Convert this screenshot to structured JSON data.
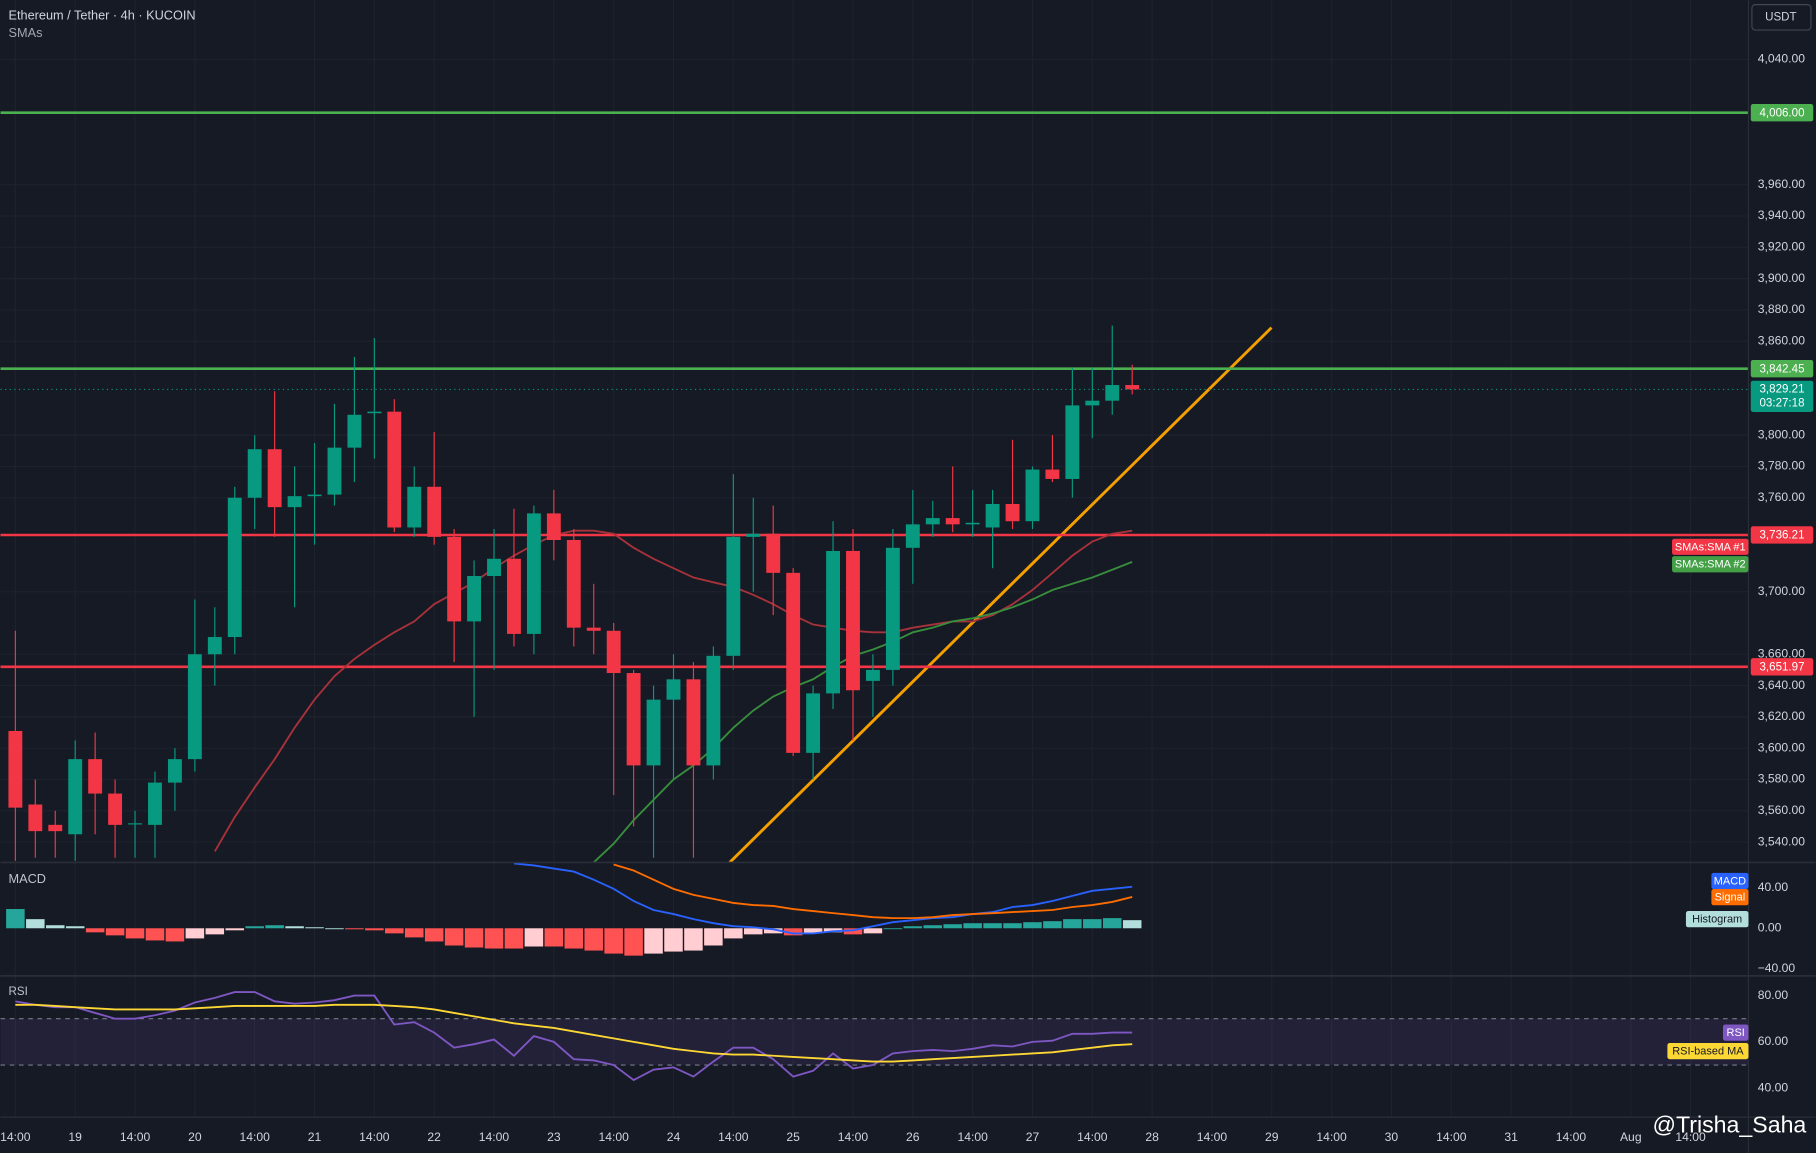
{
  "chart_data": [
    {
      "type": "candlestick",
      "title": "Ethereum / Tether · 4h · KUCOIN",
      "subtitle": "SMAs",
      "y_axis_label": "USDT",
      "annotation": "@Trisha_Saha",
      "xlim": [
        -0.75,
        86.9
      ],
      "xticks": [
        {
          "value": 0,
          "label": "14:00"
        },
        {
          "value": 3,
          "label": "19"
        },
        {
          "value": 6,
          "label": "14:00"
        },
        {
          "value": 9,
          "label": "20"
        },
        {
          "value": 12,
          "label": "14:00"
        },
        {
          "value": 15,
          "label": "21"
        },
        {
          "value": 18,
          "label": "14:00"
        },
        {
          "value": 21,
          "label": "22"
        },
        {
          "value": 24,
          "label": "14:00"
        },
        {
          "value": 27,
          "label": "23"
        },
        {
          "value": 30,
          "label": "14:00"
        },
        {
          "value": 33,
          "label": "24"
        },
        {
          "value": 36,
          "label": "14:00"
        },
        {
          "value": 39,
          "label": "25"
        },
        {
          "value": 42,
          "label": "14:00"
        },
        {
          "value": 45,
          "label": "26"
        },
        {
          "value": 48,
          "label": "14:00"
        },
        {
          "value": 51,
          "label": "27"
        },
        {
          "value": 54,
          "label": "14:00"
        },
        {
          "value": 57,
          "label": "28"
        },
        {
          "value": 60,
          "label": "14:00"
        },
        {
          "value": 63,
          "label": "29"
        },
        {
          "value": 66,
          "label": "14:00"
        },
        {
          "value": 69,
          "label": "30"
        },
        {
          "value": 72,
          "label": "14:00"
        },
        {
          "value": 75,
          "label": "31"
        },
        {
          "value": 78,
          "label": "14:00"
        },
        {
          "value": 81,
          "label": "Aug"
        },
        {
          "value": 84,
          "label": "14:00"
        }
      ],
      "ylim": [
        3527,
        4078
      ],
      "yticks": [
        {
          "value": 3540,
          "label": "3,540.00"
        },
        {
          "value": 3560,
          "label": "3,560.00"
        },
        {
          "value": 3580,
          "label": "3,580.00"
        },
        {
          "value": 3600,
          "label": "3,600.00"
        },
        {
          "value": 3620,
          "label": "3,620.00"
        },
        {
          "value": 3640,
          "label": "3,640.00"
        },
        {
          "value": 3660,
          "label": "3,660.00"
        },
        {
          "value": 3700,
          "label": "3,700.00"
        },
        {
          "value": 3760,
          "label": "3,760.00"
        },
        {
          "value": 3780,
          "label": "3,780.00"
        },
        {
          "value": 3800,
          "label": "3,800.00"
        },
        {
          "value": 3860,
          "label": "3,860.00"
        },
        {
          "value": 3880,
          "label": "3,880.00"
        },
        {
          "value": 3900,
          "label": "3,900.00"
        },
        {
          "value": 3920,
          "label": "3,920.00"
        },
        {
          "value": 3940,
          "label": "3,940.00"
        },
        {
          "value": 3960,
          "label": "3,960.00"
        },
        {
          "value": 4040,
          "label": "4,040.00"
        }
      ],
      "grid": true,
      "up_color": "#089981",
      "down_color": "#f23645",
      "open": [
        3611,
        3564,
        3551,
        3545,
        3593,
        3571,
        3552,
        3551,
        3578,
        3593,
        3660,
        3671,
        3760,
        3791,
        3754,
        3761,
        3762,
        3792,
        3814,
        3815,
        3741,
        3767,
        3735,
        3681,
        3710,
        3721,
        3673,
        3750,
        3733,
        3677,
        3675,
        3648,
        3589,
        3631,
        3644,
        3589,
        3659,
        3735,
        3737,
        3712,
        3597,
        3635,
        3726,
        3643,
        3650,
        3728,
        3743,
        3747,
        3743,
        3741,
        3756,
        3745,
        3778,
        3772,
        3819,
        3822,
        3832
      ],
      "high": [
        3675,
        3580,
        3560,
        3605,
        3610,
        3580,
        3560,
        3585,
        3600,
        3695,
        3690,
        3767,
        3800,
        3828,
        3780,
        3795,
        3820,
        3850,
        3862,
        3823,
        3780,
        3802,
        3740,
        3720,
        3740,
        3753,
        3755,
        3765,
        3740,
        3705,
        3680,
        3650,
        3640,
        3660,
        3655,
        3665,
        3775,
        3760,
        3755,
        3715,
        3640,
        3745,
        3740,
        3660,
        3740,
        3765,
        3758,
        3780,
        3765,
        3765,
        3797,
        3780,
        3800,
        3843,
        3843,
        3870,
        3845
      ],
      "low": [
        3528,
        3530,
        3530,
        3528,
        3545,
        3530,
        3530,
        3530,
        3560,
        3585,
        3640,
        3660,
        3740,
        3735,
        3690,
        3730,
        3755,
        3770,
        3785,
        3738,
        3735,
        3730,
        3655,
        3620,
        3650,
        3665,
        3660,
        3720,
        3665,
        3660,
        3570,
        3550,
        3530,
        3580,
        3530,
        3580,
        3650,
        3700,
        3685,
        3595,
        3580,
        3625,
        3605,
        3620,
        3640,
        3705,
        3735,
        3738,
        3735,
        3715,
        3740,
        3740,
        3770,
        3760,
        3798,
        3813,
        3826
      ],
      "close": [
        3562,
        3547,
        3547,
        3593,
        3571,
        3551,
        3552,
        3578,
        3593,
        3660,
        3671,
        3760,
        3791,
        3754,
        3761,
        3762,
        3792,
        3813,
        3815,
        3741,
        3767,
        3735,
        3681,
        3710,
        3721,
        3673,
        3750,
        3733,
        3677,
        3675,
        3648,
        3589,
        3631,
        3644,
        3589,
        3659,
        3735,
        3737,
        3712,
        3597,
        3635,
        3726,
        3637,
        3650,
        3728,
        3743,
        3747,
        3743,
        3744,
        3756,
        3745,
        3778,
        3772,
        3819,
        3822,
        3832,
        3829.21
      ],
      "series": [
        {
          "name": "SMAs:SMA #1",
          "color": "#a8323a",
          "values": [
            null,
            null,
            null,
            null,
            null,
            null,
            null,
            null,
            null,
            null,
            3534,
            3556,
            3575,
            3593,
            3613,
            3631,
            3646,
            3657,
            3666,
            3674,
            3681,
            3692,
            3699,
            3706,
            3715,
            3723,
            3730,
            3736,
            3739,
            3739,
            3737,
            3728,
            3721,
            3715,
            3709,
            3706,
            3703,
            3698,
            3692,
            3685,
            3679,
            3677,
            3675,
            3674,
            3674,
            3677,
            3679,
            3681,
            3681,
            3685,
            3692,
            3701,
            3712,
            3723,
            3732,
            3737,
            3739
          ]
        },
        {
          "name": "SMAs:SMA #2",
          "color": "#388e3c",
          "values": [
            null,
            null,
            null,
            null,
            null,
            null,
            null,
            null,
            null,
            null,
            null,
            null,
            null,
            null,
            null,
            null,
            null,
            null,
            null,
            null,
            null,
            null,
            null,
            null,
            null,
            null,
            null,
            null,
            null,
            3527,
            3539,
            3554,
            3567,
            3580,
            3589,
            3600,
            3613,
            3624,
            3633,
            3639,
            3644,
            3652,
            3659,
            3663,
            3668,
            3674,
            3677,
            3681,
            3683,
            3686,
            3690,
            3695,
            3701,
            3705,
            3709,
            3714,
            3719
          ]
        }
      ],
      "levels": [
        {
          "value": 4006,
          "label": "4,006.00",
          "color": "#4caf50"
        },
        {
          "value": 3842.45,
          "label": "3,842.45",
          "color": "#4caf50"
        },
        {
          "value": 3736.21,
          "label": "3,736.21",
          "color": "#f23645"
        },
        {
          "value": 3651.97,
          "label": "3,651.97",
          "color": "#f23645"
        }
      ],
      "last_price": {
        "value": 3829.21,
        "label": "3,829.21"
      },
      "countdown": "03:27:18"
    },
    {
      "type": "macd",
      "title": "MACD",
      "ylim": [
        -47,
        65
      ],
      "yticks": [
        {
          "value": 40,
          "label": "40.00"
        },
        {
          "value": 0,
          "label": "0.00"
        },
        {
          "value": -40,
          "label": "−40.00"
        }
      ],
      "histogram": {
        "name": "Histogram",
        "colors": [
          "#26a69a",
          "#b2dfdb",
          "#ff5252",
          "#ffcdd2"
        ],
        "values": [
          19,
          9,
          3,
          2,
          -4,
          -7,
          -10,
          -12,
          -13,
          -10,
          -6,
          -2,
          2,
          3,
          2,
          1,
          0,
          -1,
          -2,
          -5,
          -9,
          -13,
          -17,
          -19,
          -20,
          -20,
          -18,
          -18,
          -20,
          -22,
          -25,
          -27,
          -25,
          -23,
          -22,
          -17,
          -10,
          -6,
          -5,
          -7,
          -5,
          -4,
          -6,
          -5,
          0,
          2,
          3,
          4,
          5,
          5,
          5,
          6,
          7,
          9,
          9,
          10,
          8
        ]
      },
      "series": [
        {
          "name": "MACD",
          "color": "#2962ff",
          "values": [
            null,
            null,
            null,
            null,
            null,
            null,
            null,
            null,
            null,
            null,
            null,
            null,
            null,
            null,
            null,
            null,
            null,
            null,
            null,
            null,
            null,
            null,
            null,
            null,
            null,
            64,
            62,
            59,
            56,
            48,
            39,
            27,
            18,
            14,
            9,
            5,
            2,
            1,
            -1,
            -5,
            -5,
            -3,
            -2,
            2,
            6,
            8,
            10,
            11,
            14,
            16,
            21,
            23,
            27,
            32,
            37,
            39,
            41
          ]
        },
        {
          "name": "Signal",
          "color": "#ff6d00",
          "values": [
            null,
            null,
            null,
            null,
            null,
            null,
            null,
            null,
            null,
            null,
            null,
            null,
            null,
            null,
            null,
            null,
            null,
            null,
            null,
            null,
            null,
            null,
            null,
            null,
            null,
            null,
            null,
            null,
            null,
            null,
            63,
            57,
            48,
            39,
            33,
            29,
            25,
            23,
            22,
            19,
            17,
            15,
            13,
            11,
            10,
            10,
            11,
            13,
            14,
            15,
            16,
            17,
            18,
            21,
            23,
            26,
            31
          ]
        }
      ]
    },
    {
      "type": "line",
      "title": "RSI",
      "ylim": [
        27.5,
        88.5
      ],
      "yticks": [
        {
          "value": 80,
          "label": "80.00"
        },
        {
          "value": 60,
          "label": "60.00"
        },
        {
          "value": 40,
          "label": "40.00"
        }
      ],
      "band": [
        50,
        70
      ],
      "series": [
        {
          "name": "RSI",
          "color": "#7e57c2",
          "values": [
            77.5,
            76,
            75,
            75,
            72.5,
            70,
            70,
            71.5,
            73.5,
            77,
            79,
            81.5,
            81.5,
            77.5,
            76.5,
            77,
            78,
            80,
            80,
            67.5,
            68.5,
            64,
            57.5,
            59,
            61,
            54,
            62.5,
            60,
            52.5,
            52,
            50,
            43.5,
            48,
            49,
            45,
            51.5,
            57.5,
            57.5,
            52.5,
            45,
            47.5,
            55,
            48.5,
            50,
            55,
            56,
            56.5,
            56,
            57,
            58.5,
            58,
            60,
            60.5,
            63.5,
            63.5,
            64,
            64
          ]
        },
        {
          "name": "RSI-based MA",
          "color": "#fdd835",
          "values": [
            76,
            76,
            75.5,
            75,
            74.5,
            74,
            74,
            74,
            74,
            74.5,
            75,
            75.5,
            75.5,
            75.5,
            75.5,
            75.5,
            76,
            76,
            76,
            75.5,
            75,
            74,
            72.5,
            71,
            69.5,
            68,
            67,
            66,
            64.5,
            63,
            61.5,
            60,
            58.5,
            57,
            56,
            55,
            54.5,
            54.5,
            54,
            53.5,
            53,
            52.5,
            52,
            51.5,
            51.5,
            52,
            52.5,
            53,
            53.5,
            54,
            54.5,
            55,
            55.5,
            56.5,
            57.5,
            58.5,
            59
          ]
        }
      ]
    }
  ]
}
